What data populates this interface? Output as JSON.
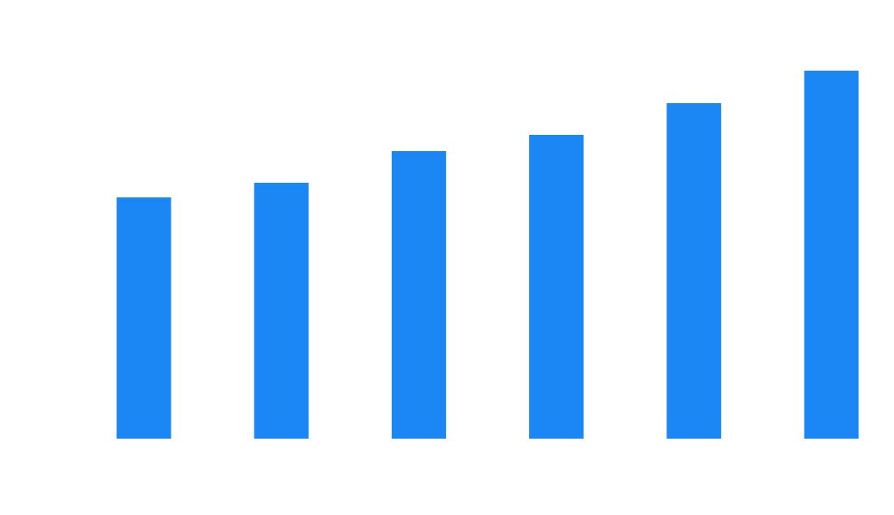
{
  "chart_data": {
    "type": "bar",
    "values": [
      297,
      315,
      354,
      374,
      413,
      453
    ],
    "ylim": [
      0,
      500
    ],
    "grid": false,
    "legend": "none",
    "bar_color": "#1a87f5",
    "background": "#ffffff"
  }
}
